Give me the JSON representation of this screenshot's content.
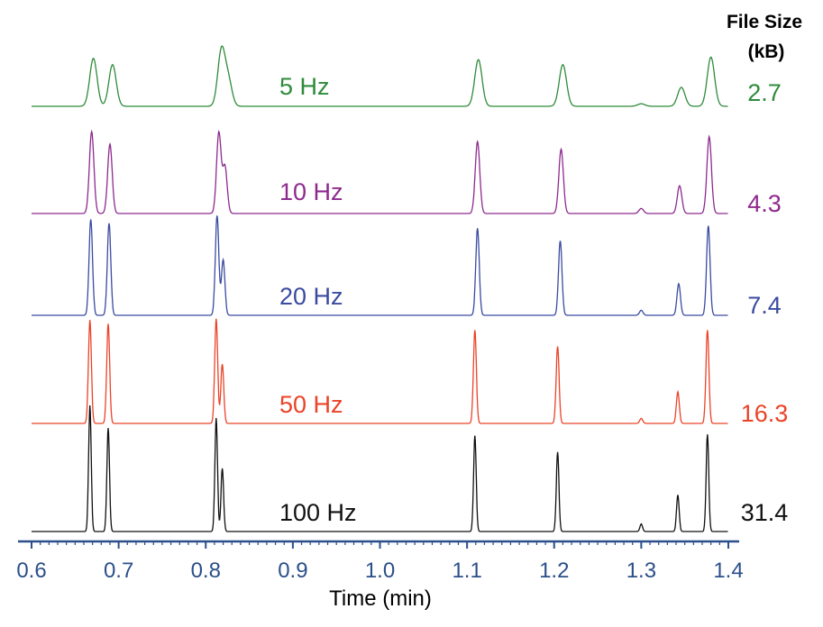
{
  "chart_data": {
    "type": "line",
    "xlabel": "Time (min)",
    "xlim": [
      0.6,
      1.4
    ],
    "x_ticks": [
      "0.6",
      "0.7",
      "0.8",
      "0.9",
      "1.0",
      "1.1",
      "1.2",
      "1.3",
      "1.4"
    ],
    "file_size_header": [
      "File Size",
      "(kB)"
    ],
    "series": [
      {
        "name": "5 Hz",
        "file_size": "2.7",
        "color": "#2e8b3a",
        "peak_width_min": 0.0042,
        "peaks": [
          [
            0.671,
            0.38
          ],
          [
            0.693,
            0.33
          ],
          [
            0.818,
            0.44
          ],
          [
            0.826,
            0.2
          ],
          [
            1.113,
            0.37
          ],
          [
            1.21,
            0.33
          ],
          [
            1.3,
            0.02
          ],
          [
            1.346,
            0.15
          ],
          [
            1.38,
            0.39
          ]
        ]
      },
      {
        "name": "10 Hz",
        "file_size": "4.3",
        "color": "#8e2a8e",
        "peak_width_min": 0.0026,
        "peaks": [
          [
            0.669,
            0.65
          ],
          [
            0.69,
            0.55
          ],
          [
            0.815,
            0.64
          ],
          [
            0.822,
            0.37
          ],
          [
            1.112,
            0.57
          ],
          [
            1.208,
            0.51
          ],
          [
            1.3,
            0.04
          ],
          [
            1.344,
            0.22
          ],
          [
            1.378,
            0.61
          ]
        ]
      },
      {
        "name": "20 Hz",
        "file_size": "7.4",
        "color": "#3a4ba0",
        "peak_width_min": 0.002,
        "peaks": [
          [
            0.668,
            0.76
          ],
          [
            0.689,
            0.73
          ],
          [
            0.813,
            0.79
          ],
          [
            0.82,
            0.44
          ],
          [
            1.112,
            0.69
          ],
          [
            1.207,
            0.59
          ],
          [
            1.3,
            0.04
          ],
          [
            1.343,
            0.25
          ],
          [
            1.377,
            0.71
          ]
        ]
      },
      {
        "name": "50 Hz",
        "file_size": "16.3",
        "color": "#ea4328",
        "peak_width_min": 0.0017,
        "peaks": [
          [
            0.667,
            0.82
          ],
          [
            0.688,
            0.79
          ],
          [
            0.812,
            0.83
          ],
          [
            0.819,
            0.47
          ],
          [
            1.109,
            0.74
          ],
          [
            1.204,
            0.61
          ],
          [
            1.3,
            0.04
          ],
          [
            1.342,
            0.25
          ],
          [
            1.376,
            0.74
          ]
        ]
      },
      {
        "name": "100 Hz",
        "file_size": "31.4",
        "color": "#111111",
        "peak_width_min": 0.0015,
        "peaks": [
          [
            0.667,
            1.0
          ],
          [
            0.688,
            0.82
          ],
          [
            0.812,
            0.9
          ],
          [
            0.819,
            0.5
          ],
          [
            1.109,
            0.76
          ],
          [
            1.204,
            0.63
          ],
          [
            1.3,
            0.06
          ],
          [
            1.342,
            0.29
          ],
          [
            1.376,
            0.77
          ]
        ]
      }
    ],
    "grid": false,
    "axis_color": "#2b4f8a"
  }
}
